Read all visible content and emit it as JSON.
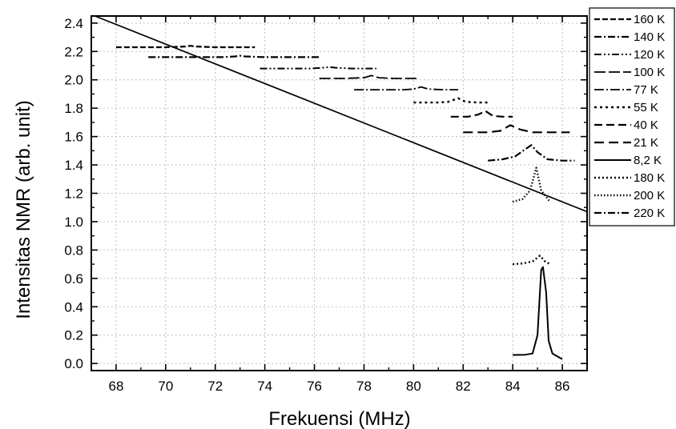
{
  "chart_data": {
    "type": "line",
    "title": "",
    "xlabel": "Frekuensi (MHz)",
    "ylabel": "Intensitas NMR (arb. unit)",
    "xlim": [
      67,
      87
    ],
    "ylim": [
      -0.05,
      2.45
    ],
    "xticks": [
      68,
      70,
      72,
      74,
      76,
      78,
      80,
      82,
      84,
      86
    ],
    "yticks": [
      0.0,
      0.2,
      0.4,
      0.6,
      0.8,
      1.0,
      1.2,
      1.4,
      1.6,
      1.8,
      2.0,
      2.2,
      2.4
    ],
    "ytick_labels": [
      "0.0",
      "0.2",
      "0.4",
      "0.6",
      "0.8",
      "1.0",
      "1.2",
      "1.4",
      "1.6",
      "1.8",
      "2.0",
      "2.2",
      "2.4"
    ],
    "grid": true,
    "legend_position": "right",
    "series": [
      {
        "name": "160 K",
        "dash": "7,3",
        "width": 2.2,
        "points": [
          [
            68.0,
            2.23
          ],
          [
            69.0,
            2.23
          ],
          [
            70.0,
            2.23
          ],
          [
            70.8,
            2.235
          ],
          [
            71.0,
            2.24
          ],
          [
            71.2,
            2.235
          ],
          [
            72.0,
            2.23
          ],
          [
            73.0,
            2.23
          ],
          [
            73.6,
            2.23
          ]
        ]
      },
      {
        "name": "140 K",
        "dash": "9,3,2,3",
        "width": 2.2,
        "points": [
          [
            69.3,
            2.16
          ],
          [
            70.3,
            2.16
          ],
          [
            71.3,
            2.16
          ],
          [
            72.3,
            2.16
          ],
          [
            72.8,
            2.165
          ],
          [
            73.0,
            2.17
          ],
          [
            73.2,
            2.165
          ],
          [
            74.0,
            2.16
          ],
          [
            75.0,
            2.16
          ],
          [
            76.2,
            2.16
          ]
        ]
      },
      {
        "name": "120 K",
        "dash": "9,3,2,3,2,3",
        "width": 2.0,
        "points": [
          [
            73.8,
            2.08
          ],
          [
            74.8,
            2.08
          ],
          [
            75.8,
            2.08
          ],
          [
            76.3,
            2.085
          ],
          [
            76.6,
            2.09
          ],
          [
            76.9,
            2.085
          ],
          [
            77.5,
            2.08
          ],
          [
            78.5,
            2.08
          ]
        ]
      },
      {
        "name": "100 K",
        "dash": "14,4",
        "width": 1.8,
        "points": [
          [
            76.2,
            2.01
          ],
          [
            77.2,
            2.01
          ],
          [
            78.0,
            2.015
          ],
          [
            78.3,
            2.03
          ],
          [
            78.6,
            2.015
          ],
          [
            79.2,
            2.01
          ],
          [
            80.2,
            2.01
          ]
        ]
      },
      {
        "name": "77 K",
        "dash": "12,3,2,3",
        "width": 1.8,
        "points": [
          [
            77.6,
            1.93
          ],
          [
            78.6,
            1.93
          ],
          [
            79.6,
            1.93
          ],
          [
            80.0,
            1.935
          ],
          [
            80.3,
            1.95
          ],
          [
            80.6,
            1.935
          ],
          [
            81.2,
            1.93
          ],
          [
            81.8,
            1.93
          ]
        ]
      },
      {
        "name": "55 K",
        "dash": "3,4",
        "width": 2.4,
        "points": [
          [
            80.0,
            1.84
          ],
          [
            81.0,
            1.84
          ],
          [
            81.4,
            1.845
          ],
          [
            81.8,
            1.87
          ],
          [
            82.1,
            1.845
          ],
          [
            82.6,
            1.84
          ],
          [
            83.0,
            1.84
          ]
        ]
      },
      {
        "name": "40 K",
        "dash": "10,5",
        "width": 2.2,
        "points": [
          [
            81.5,
            1.74
          ],
          [
            82.2,
            1.74
          ],
          [
            82.6,
            1.755
          ],
          [
            82.9,
            1.78
          ],
          [
            83.2,
            1.745
          ],
          [
            83.6,
            1.74
          ],
          [
            84.0,
            1.74
          ]
        ]
      },
      {
        "name": "21 K",
        "dash": "12,6",
        "width": 2.2,
        "points": [
          [
            82.0,
            1.63
          ],
          [
            83.0,
            1.63
          ],
          [
            83.5,
            1.64
          ],
          [
            83.9,
            1.68
          ],
          [
            84.3,
            1.65
          ],
          [
            84.8,
            1.63
          ],
          [
            85.5,
            1.63
          ],
          [
            86.3,
            1.63
          ]
        ]
      },
      {
        "name": "8,2 K",
        "dash": "",
        "width": 2.0,
        "points": [
          [
            84.0,
            0.06
          ],
          [
            84.5,
            0.062
          ],
          [
            84.8,
            0.07
          ],
          [
            85.0,
            0.2
          ],
          [
            85.15,
            0.66
          ],
          [
            85.22,
            0.68
          ],
          [
            85.35,
            0.5
          ],
          [
            85.45,
            0.16
          ],
          [
            85.6,
            0.07
          ],
          [
            86.0,
            0.03
          ]
        ]
      },
      {
        "name": "180 K",
        "dash": "2,3",
        "width": 2.4,
        "points": [
          [
            84.0,
            0.7
          ],
          [
            84.4,
            0.705
          ],
          [
            84.8,
            0.72
          ],
          [
            85.1,
            0.76
          ],
          [
            85.3,
            0.72
          ],
          [
            85.5,
            0.7
          ]
        ]
      },
      {
        "name": "200 K",
        "dash": "1.5,2.5",
        "width": 2.4,
        "points": [
          [
            84.0,
            1.14
          ],
          [
            84.4,
            1.16
          ],
          [
            84.7,
            1.22
          ],
          [
            84.95,
            1.38
          ],
          [
            85.15,
            1.22
          ],
          [
            85.5,
            1.14
          ]
        ]
      },
      {
        "name": "220 K",
        "dash": "9,3,2,3",
        "width": 2.2,
        "points": [
          [
            83.0,
            1.43
          ],
          [
            83.6,
            1.44
          ],
          [
            84.1,
            1.46
          ],
          [
            84.5,
            1.51
          ],
          [
            84.75,
            1.54
          ],
          [
            85.0,
            1.49
          ],
          [
            85.4,
            1.44
          ],
          [
            86.0,
            1.43
          ],
          [
            86.5,
            1.43
          ]
        ]
      },
      {
        "name": "",
        "dash": "",
        "width": 1.7,
        "points": [
          [
            67.0,
            2.46
          ],
          [
            87.0,
            1.07
          ]
        ]
      }
    ]
  }
}
